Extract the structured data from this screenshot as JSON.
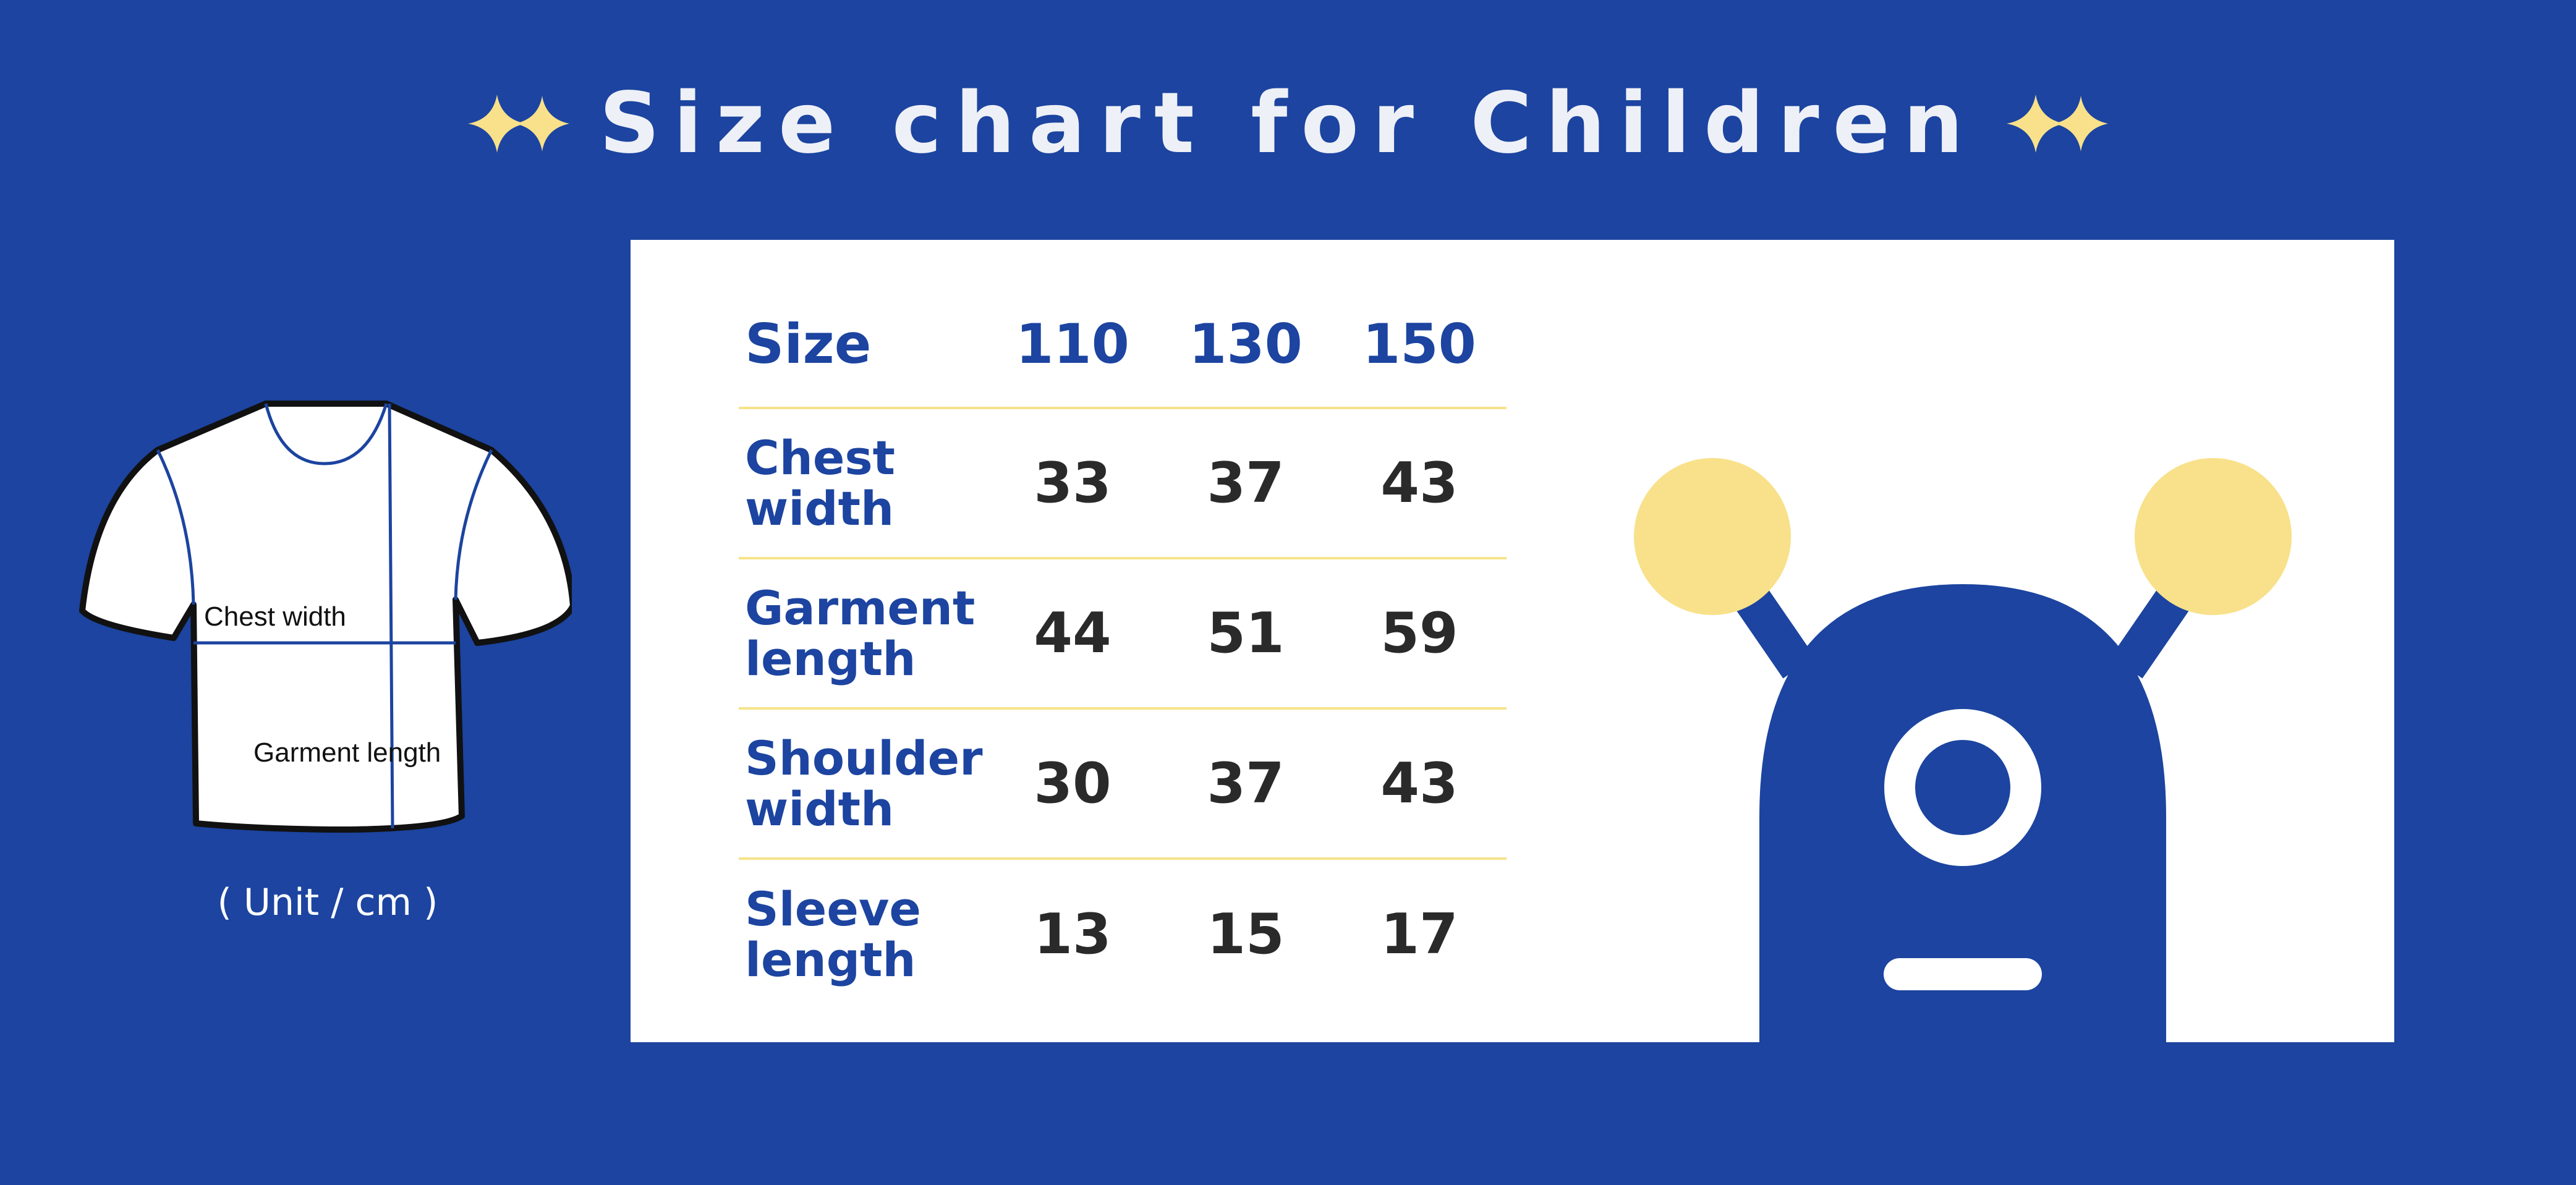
{
  "title": "Size chart for Children",
  "unit_label": "( Unit / cm )",
  "shirt_labels": {
    "chest_width": "Chest width",
    "garment_length": "Garment length"
  },
  "table": {
    "corner_label": "Size",
    "sizes": [
      "110",
      "130",
      "150"
    ],
    "rows": [
      {
        "label": "Chest\nwidth",
        "values": [
          "33",
          "37",
          "43"
        ]
      },
      {
        "label": "Garment\nlength",
        "values": [
          "44",
          "51",
          "59"
        ]
      },
      {
        "label": "Shoulder\nwidth",
        "values": [
          "30",
          "37",
          "43"
        ]
      },
      {
        "label": "Sleeve\nlength",
        "values": [
          "13",
          "15",
          "17"
        ]
      }
    ]
  },
  "colors": {
    "background": "#1c44a0",
    "accent_yellow": "#f8e18a",
    "divider": "#f5e38a",
    "card": "#ffffff",
    "value_text": "#2a2a2a"
  },
  "icons": [
    "sparkle-icon",
    "tshirt-illustration",
    "monster-illustration"
  ]
}
